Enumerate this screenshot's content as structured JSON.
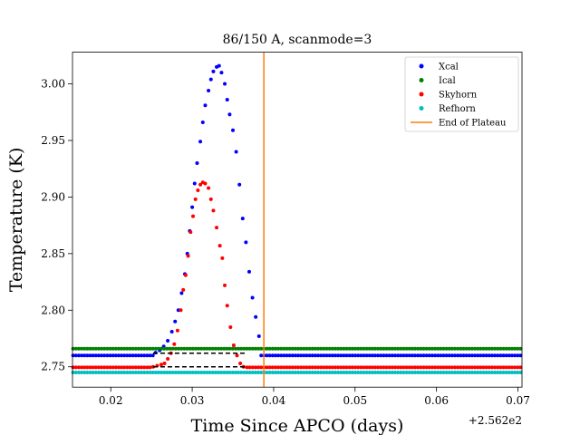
{
  "chart_data": {
    "type": "scatter",
    "title": "86/150 A, scanmode=3",
    "xlabel": "Time Since APCO (days)",
    "ylabel": "Temperature (K)",
    "x_offset_label": "+2.562e2",
    "xlim": [
      0.0153,
      0.0705
    ],
    "ylim": [
      2.732,
      3.028
    ],
    "xticks": [
      0.02,
      0.03,
      0.04,
      0.05,
      0.06,
      0.07
    ],
    "xtick_labels": [
      "0.02",
      "0.03",
      "0.04",
      "0.05",
      "0.06",
      "0.07"
    ],
    "yticks": [
      2.75,
      2.8,
      2.85,
      2.9,
      2.95,
      3.0
    ],
    "ytick_labels": [
      "2.75",
      "2.80",
      "2.85",
      "2.90",
      "2.95",
      "3.00"
    ],
    "grid": false,
    "legend_position": "top-right",
    "point_interval_days": 0.00035,
    "series": [
      {
        "name": "Xcal",
        "color": "#0000ff",
        "baseline": 2.76,
        "dense_points": [
          [
            0.0255,
            2.7625
          ],
          [
            0.026,
            2.7645
          ],
          [
            0.0265,
            2.768
          ],
          [
            0.027,
            2.773
          ],
          [
            0.0275,
            2.781
          ],
          [
            0.0279,
            2.79
          ],
          [
            0.0283,
            2.8
          ],
          [
            0.0287,
            2.815
          ],
          [
            0.0291,
            2.832
          ],
          [
            0.0294,
            2.85
          ],
          [
            0.0297,
            2.87
          ],
          [
            0.03,
            2.891
          ],
          [
            0.0303,
            2.912
          ],
          [
            0.0306,
            2.93
          ],
          [
            0.031,
            2.949
          ],
          [
            0.0313,
            2.966
          ],
          [
            0.0316,
            2.981
          ],
          [
            0.032,
            2.994
          ],
          [
            0.0323,
            3.004
          ],
          [
            0.0326,
            3.011
          ],
          [
            0.033,
            3.015
          ],
          [
            0.0333,
            3.016
          ],
          [
            0.0336,
            3.01
          ],
          [
            0.034,
            3.0
          ],
          [
            0.0343,
            2.986
          ],
          [
            0.0346,
            2.973
          ],
          [
            0.035,
            2.959
          ],
          [
            0.0354,
            2.94
          ],
          [
            0.0358,
            2.911
          ],
          [
            0.0362,
            2.881
          ],
          [
            0.0366,
            2.86
          ],
          [
            0.037,
            2.834
          ],
          [
            0.0374,
            2.811
          ],
          [
            0.0378,
            2.794
          ],
          [
            0.0382,
            2.777
          ]
        ]
      },
      {
        "name": "Ical",
        "color": "#008000",
        "baseline": 2.766,
        "dense_points": []
      },
      {
        "name": "Skyhorn",
        "color": "#ff0000",
        "baseline": 2.7495,
        "dense_points": [
          [
            0.0252,
            2.75
          ],
          [
            0.0257,
            2.751
          ],
          [
            0.0262,
            2.752
          ],
          [
            0.0266,
            2.753
          ],
          [
            0.027,
            2.757
          ],
          [
            0.0274,
            2.762
          ],
          [
            0.0278,
            2.77
          ],
          [
            0.0282,
            2.782
          ],
          [
            0.0286,
            2.8
          ],
          [
            0.0289,
            2.818
          ],
          [
            0.0292,
            2.831
          ],
          [
            0.0295,
            2.848
          ],
          [
            0.0298,
            2.869
          ],
          [
            0.0301,
            2.883
          ],
          [
            0.0304,
            2.898
          ],
          [
            0.0307,
            2.906
          ],
          [
            0.031,
            2.911
          ],
          [
            0.0313,
            2.913
          ],
          [
            0.0316,
            2.912
          ],
          [
            0.032,
            2.908
          ],
          [
            0.0323,
            2.898
          ],
          [
            0.0326,
            2.888
          ],
          [
            0.033,
            2.873
          ],
          [
            0.0334,
            2.857
          ],
          [
            0.0337,
            2.846
          ],
          [
            0.034,
            2.822
          ],
          [
            0.0343,
            2.804
          ],
          [
            0.0347,
            2.785
          ],
          [
            0.0351,
            2.769
          ],
          [
            0.0355,
            2.76
          ],
          [
            0.0359,
            2.753
          ],
          [
            0.0363,
            2.75
          ]
        ]
      },
      {
        "name": "Refhorn",
        "color": "#00bfbf",
        "baseline": 2.745,
        "dense_points": []
      }
    ],
    "vline": {
      "name": "End of Plateau",
      "x": 0.0388,
      "color": "#ff7f0e"
    },
    "dashed_lines": [
      {
        "y": 2.762,
        "x0": 0.0252,
        "x1": 0.0365,
        "color": "#000000"
      },
      {
        "y": 2.75,
        "x0": 0.0252,
        "x1": 0.0365,
        "color": "#000000"
      }
    ]
  }
}
